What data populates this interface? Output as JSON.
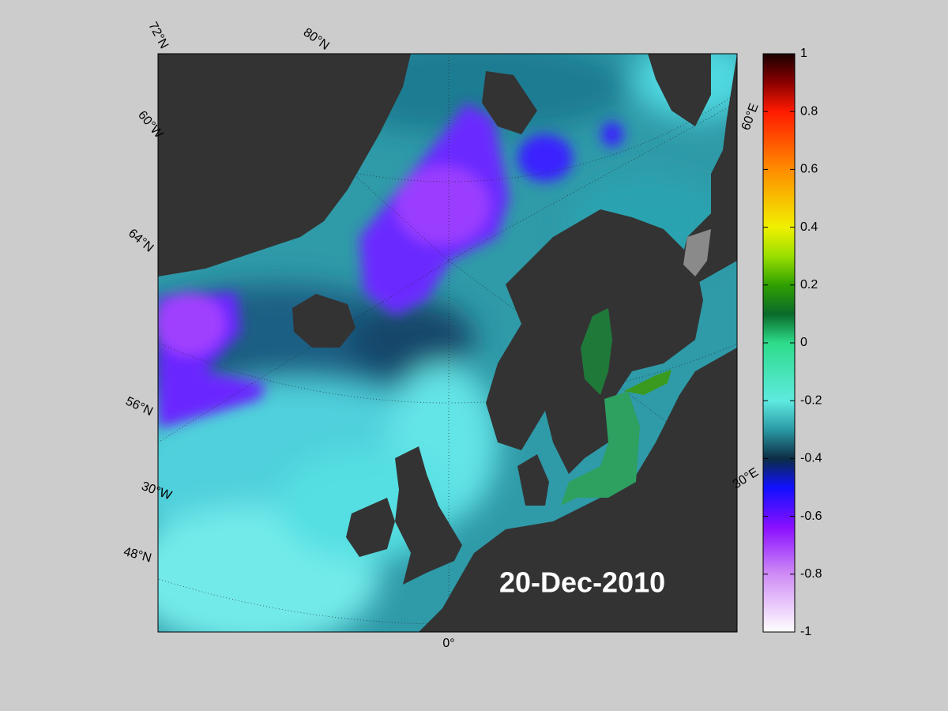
{
  "map": {
    "date_label": "20-Dec-2010",
    "graticule_labels": [
      "72°N",
      "80°N",
      "60°W",
      "64°N",
      "56°N",
      "30°W",
      "48°N",
      "0°",
      "60°E",
      "30°E"
    ]
  },
  "colorbar": {
    "lim": [
      -1,
      1
    ],
    "ticks": [
      1,
      0.8,
      0.6,
      0.4,
      0.2,
      0,
      -0.2,
      -0.4,
      -0.6,
      -0.8,
      -1
    ]
  }
}
